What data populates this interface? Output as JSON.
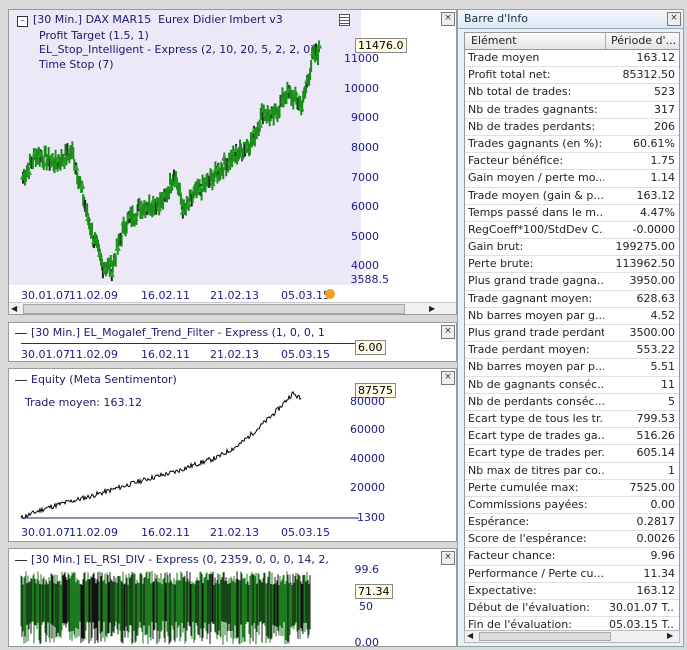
{
  "chart1": {
    "title": "[30 Min.] DAX MAR15",
    "subtitle": "Eurex Didier Imbert v3",
    "legend": [
      "Profit Target  (1.5, 1)",
      "EL_Stop_Intelligent - Express  (2, 10, 20, 5, 2, 2, 0)",
      "Time Stop  (7)"
    ],
    "price_box": "11476.0",
    "y_labels": [
      "11000",
      "10000",
      "9000",
      "8000",
      "7000",
      "6000",
      "5000",
      "4000",
      "3588.5"
    ],
    "x_labels": [
      "30.01.07",
      "11.02.09",
      "16.02.11",
      "21.02.13",
      "05.03.15"
    ]
  },
  "chart2": {
    "title": "[30 Min.] EL_Mogalef_Trend_Filter - Express  (1, 0, 0, 1",
    "value_box": "6.00",
    "x_labels": [
      "30.01.07",
      "11.02.09",
      "16.02.11",
      "21.02.13",
      "05.03.15"
    ]
  },
  "chart3": {
    "title": "Equity (Meta Sentimentor)",
    "note": "Trade moyen: 163.12",
    "value_box": "87575",
    "y_labels": [
      "80000",
      "60000",
      "40000",
      "20000",
      "-1300"
    ],
    "x_labels": [
      "30.01.07",
      "11.02.09",
      "16.02.11",
      "21.02.13",
      "05.03.15"
    ]
  },
  "chart4": {
    "title": "[30 Min.] EL_RSI_DIV - Express  (0, 2359, 0, 0, 0, 14, 2,",
    "y_labels": [
      "99.6",
      "50",
      "0.00"
    ],
    "value_box": "71.34"
  },
  "info_panel": {
    "title": "Barre d'Info",
    "col_headers": [
      "Elément",
      "Période d'..."
    ],
    "rows": [
      [
        "Trade moyen",
        "163.12"
      ],
      [
        "Profit total net:",
        "85312.50"
      ],
      [
        "Nb total de trades:",
        "523"
      ],
      [
        "Nb de trades gagnants:",
        "317"
      ],
      [
        "Nb de trades perdants:",
        "206"
      ],
      [
        "Trades gagnants (en %):",
        "60.61%"
      ],
      [
        "Facteur bénéfice:",
        "1.75"
      ],
      [
        "Gain moyen / perte mo...",
        "1.14"
      ],
      [
        "Trade moyen (gain & p...",
        "163.12"
      ],
      [
        "Temps passé dans le m...",
        "4.47%"
      ],
      [
        "RegCoeff*100/StdDev C...",
        "-0.0000"
      ],
      [
        "Gain brut:",
        "199275.00"
      ],
      [
        "Perte brute:",
        "113962.50"
      ],
      [
        "Plus grand trade gagna...",
        "3950.00"
      ],
      [
        "Trade gagnant moyen:",
        "628.63"
      ],
      [
        "Nb barres moyen par g...",
        "4.52"
      ],
      [
        "Plus grand trade perdant:",
        "3500.00"
      ],
      [
        "Trade perdant moyen:",
        "553.22"
      ],
      [
        "Nb barres moyen par p...",
        "5.51"
      ],
      [
        "Nb de gagnants conséc...",
        "11"
      ],
      [
        "Nb de perdants conséc...",
        "5"
      ],
      [
        "Ecart type de tous les tr...",
        "799.53"
      ],
      [
        "Ecart type de trades ga...",
        "516.26"
      ],
      [
        "Ecart type de trades per...",
        "605.14"
      ],
      [
        "Nb max de titres par co...",
        "1"
      ],
      [
        "Perte cumulée max:",
        "7525.00"
      ],
      [
        "Commissions payées:",
        "0.00"
      ],
      [
        "Espérance:",
        "0.2817"
      ],
      [
        "Score de l'espérance:",
        "0.0026"
      ],
      [
        "Facteur chance:",
        "9.96"
      ],
      [
        "Performance / Perte cu...",
        "11.34"
      ],
      [
        "Expectative:",
        "163.12"
      ],
      [
        "Début de l'évaluation:",
        "30.01.07 T..."
      ],
      [
        "Fin de l'évaluation:",
        "05.03.15 T..."
      ]
    ]
  },
  "colors": {
    "price_bars": "#1a8c1a",
    "price_bg": "#ece8f8",
    "equity": "#000000",
    "rsi_green": "#1e7a1e"
  }
}
